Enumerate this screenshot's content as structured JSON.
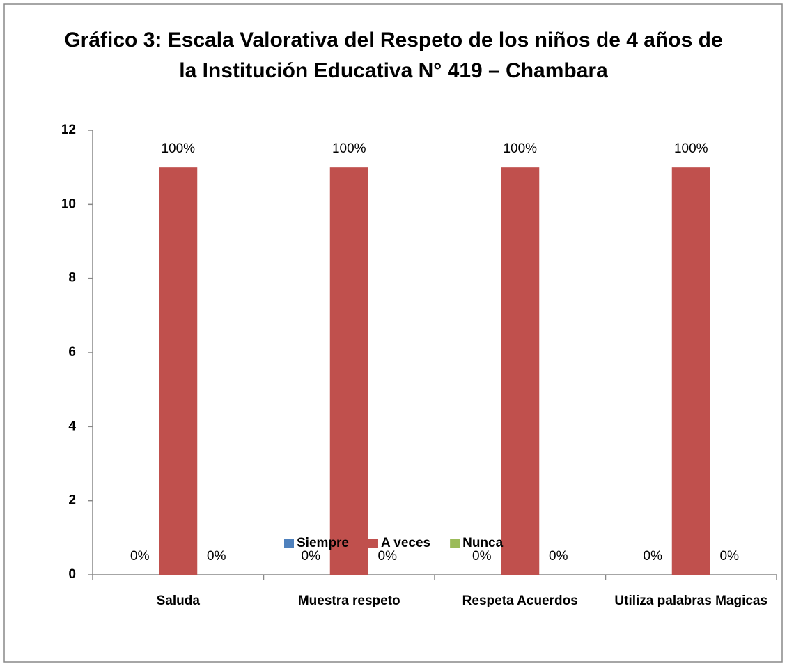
{
  "chart_data": {
    "type": "bar",
    "title": "Gráfico 3: Escala Valorativa del Respeto de los niños de 4 años de la Institución Educativa N° 419 – Chambara",
    "categories": [
      "Saluda",
      "Muestra respeto",
      "Respeta Acuerdos",
      "Utiliza palabras Magicas"
    ],
    "series": [
      {
        "name": "Siempre",
        "color": "#4f81bd",
        "values": [
          0,
          0,
          0,
          0
        ],
        "value_labels": [
          "0%",
          "0%",
          "0%",
          "0%"
        ]
      },
      {
        "name": "A veces",
        "color": "#c0504d",
        "values": [
          11,
          11,
          11,
          11
        ],
        "value_labels": [
          "100%",
          "100%",
          "100%",
          "100%"
        ]
      },
      {
        "name": "Nunca",
        "color": "#9bbb59",
        "values": [
          0,
          0,
          0,
          0
        ],
        "value_labels": [
          "0%",
          "0%",
          "0%",
          "0%"
        ]
      }
    ],
    "ylim": [
      0,
      12
    ],
    "yticks": [
      0,
      2,
      4,
      6,
      8,
      10,
      12
    ],
    "legend": "bottom"
  }
}
